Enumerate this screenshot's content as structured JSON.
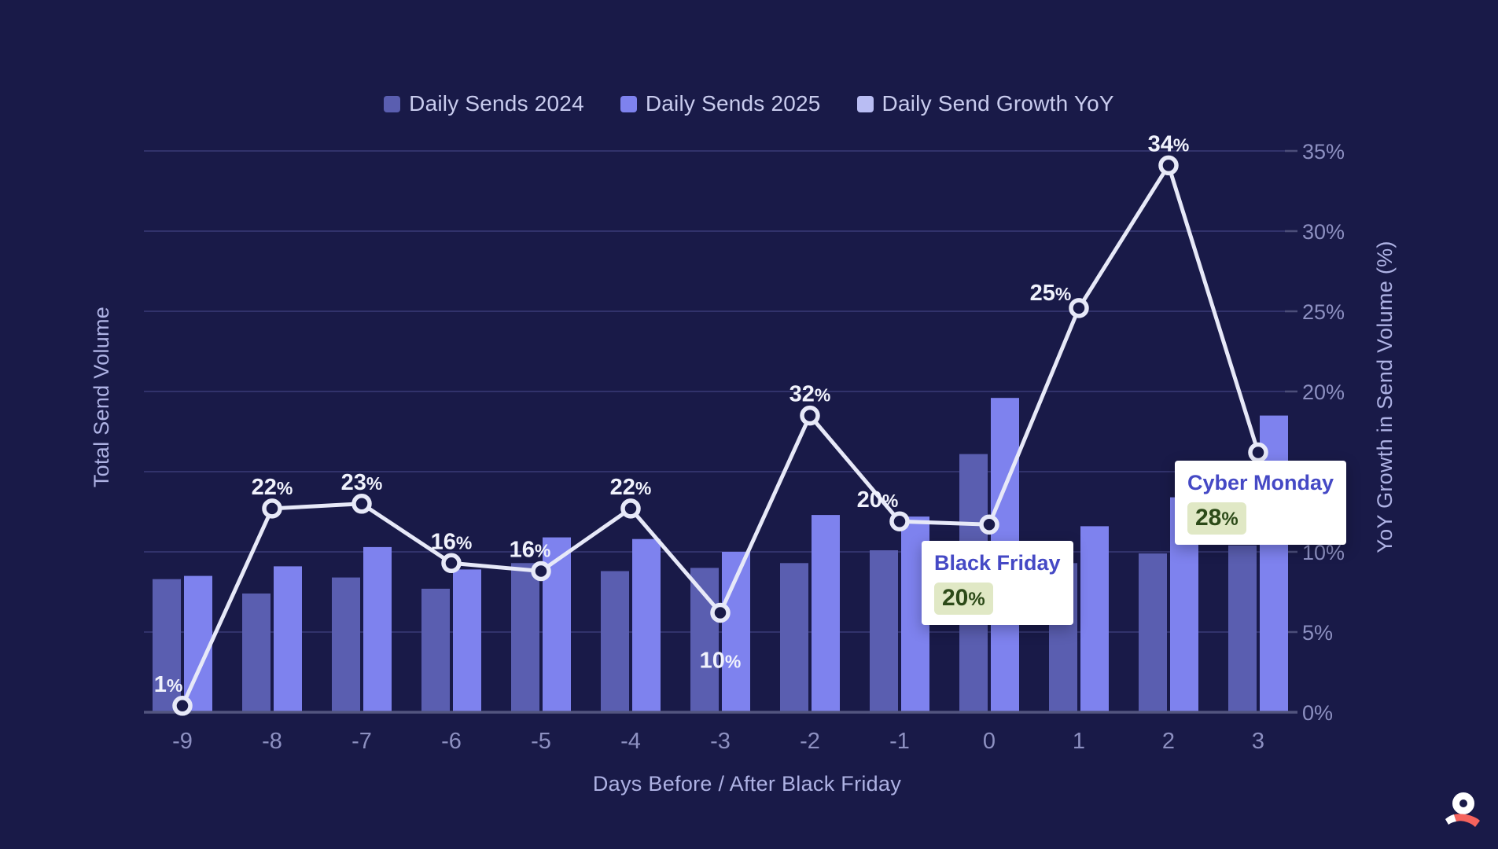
{
  "legend": {
    "items": [
      {
        "label": "Daily Sends 2024",
        "color": "#5a5eb0"
      },
      {
        "label": "Daily Sends 2025",
        "color": "#7e82ee"
      },
      {
        "label": "Daily Send Growth YoY",
        "color": "#b9bdf3"
      }
    ]
  },
  "chart_data": {
    "type": "combo bar+line (dual axis)",
    "title": "",
    "xlabel": "Days Before / After Black Friday",
    "ylabel_left": "Total Send Volume",
    "ylabel_right": "YoY Growth in Send Volume (%)",
    "categories": [
      "-9",
      "-8",
      "-7",
      "-6",
      "-5",
      "-4",
      "-3",
      "-2",
      "-1",
      "0",
      "1",
      "2",
      "3"
    ],
    "right_axis_range": [
      0,
      35
    ],
    "right_axis_ticks": [
      0,
      5,
      10,
      20,
      25,
      30,
      35
    ],
    "right_axis_tick_suffix": "%",
    "grid_levels": [
      0,
      5,
      10,
      15,
      20,
      25,
      30,
      35
    ],
    "grid": "horizontal only",
    "legend_position": "top center",
    "left_axis_note": "left axis has no tick labels; bar values below are relative volume units read against gridline spacing of right axis",
    "series": [
      {
        "name": "Daily Sends 2024",
        "type": "bar",
        "color": "#5a5eb0",
        "values": [
          8.3,
          7.4,
          8.4,
          7.7,
          9.3,
          8.8,
          9.0,
          9.3,
          10.1,
          16.1,
          9.3,
          9.9,
          10.4
        ]
      },
      {
        "name": "Daily Sends 2025",
        "type": "bar",
        "color": "#7e82ee",
        "values": [
          8.5,
          9.1,
          10.3,
          8.9,
          10.9,
          10.8,
          10.0,
          12.3,
          12.2,
          19.6,
          11.6,
          13.4,
          18.5
        ]
      },
      {
        "name": "Daily Send Growth YoY",
        "type": "line",
        "color": "#e7e9f8",
        "values_pct": [
          1,
          22,
          23,
          16,
          16,
          22,
          10,
          32,
          20,
          20,
          25,
          34,
          28
        ],
        "point_labels": [
          "1%",
          "22%",
          "23%",
          "16%",
          "16%",
          "22%",
          "10%",
          "32%",
          "20%",
          null,
          "25%",
          "34%",
          null
        ],
        "plotted_axis_pct": [
          0.4,
          12.7,
          13.0,
          9.3,
          8.8,
          12.7,
          6.2,
          18.5,
          11.9,
          11.7,
          25.2,
          34.1,
          16.2
        ],
        "label_offsets": {
          "0": [
            -18,
            -18
          ],
          "4": [
            -14,
            -18
          ],
          "6": [
            0,
            70
          ],
          "8": [
            -28,
            -18
          ],
          "10": [
            -36,
            -10
          ]
        },
        "label_offset_default": [
          0,
          -18
        ]
      }
    ],
    "annotations": [
      {
        "title": "Black Friday",
        "value": "20%",
        "day": "0"
      },
      {
        "title": "Cyber Monday",
        "value": "28%",
        "day": "3"
      }
    ]
  },
  "colors": {
    "background": "#191a48",
    "gridline": "#31326b",
    "axis_line": "#53557f",
    "tick_text": "#8d90c1",
    "axis_title_text": "#aeb2e4",
    "legend_text": "#c9ccee",
    "data_label_text": "#f0f2fc",
    "tooltip_bg": "#ffffff",
    "tooltip_title": "#4549c5",
    "tooltip_chip_bg": "#e0e8c5",
    "tooltip_chip_text": "#2c4a18",
    "logo_coral": "#f5635d",
    "logo_white": "#ffffff"
  },
  "logo": {
    "name": "omnisend-logo"
  }
}
